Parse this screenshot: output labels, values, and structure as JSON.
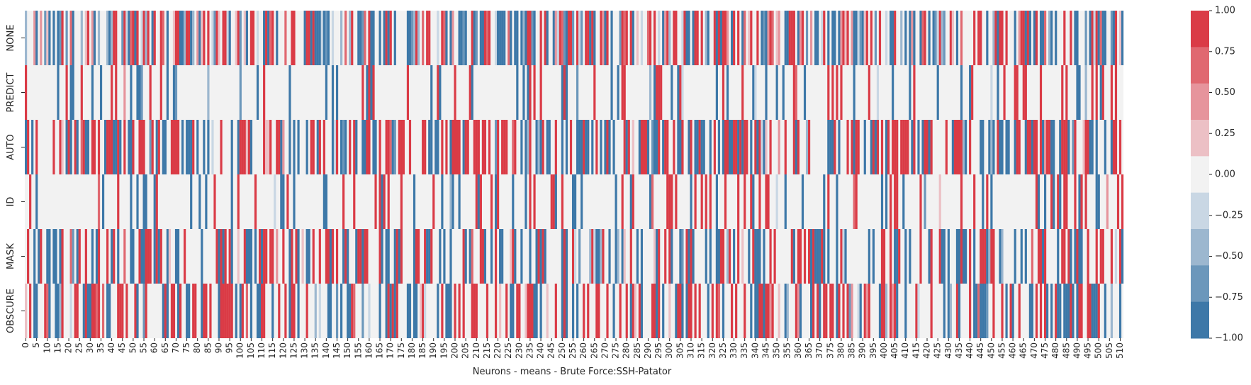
{
  "chart_data": {
    "type": "heatmap",
    "title": "",
    "xlabel": "Neurons - means - Brute Force:SSH-Patator",
    "ylabel": "",
    "rows": [
      "NONE",
      "PREDICT",
      "AUTO",
      "ID",
      "MASK",
      "OBSCURE"
    ],
    "n_columns": 512,
    "x_tick_labels": [
      "0",
      "5",
      "10",
      "15",
      "20",
      "25",
      "30",
      "35",
      "40",
      "45",
      "50",
      "55",
      "60",
      "65",
      "70",
      "75",
      "80",
      "85",
      "90",
      "95",
      "100",
      "105",
      "110",
      "115",
      "120",
      "125",
      "130",
      "135",
      "140",
      "145",
      "150",
      "155",
      "160",
      "165",
      "170",
      "175",
      "180",
      "185",
      "190",
      "195",
      "200",
      "205",
      "210",
      "215",
      "220",
      "225",
      "230",
      "235",
      "240",
      "245",
      "250",
      "255",
      "260",
      "265",
      "270",
      "275",
      "280",
      "285",
      "290",
      "295",
      "300",
      "305",
      "310",
      "315",
      "320",
      "325",
      "330",
      "335",
      "340",
      "345",
      "350",
      "355",
      "360",
      "365",
      "370",
      "375",
      "380",
      "385",
      "390",
      "395",
      "400",
      "405",
      "410",
      "415",
      "420",
      "425",
      "430",
      "435",
      "440",
      "445",
      "450",
      "455",
      "460",
      "465",
      "470",
      "475",
      "480",
      "485",
      "490",
      "495",
      "500",
      "505",
      "510"
    ],
    "x_tick_step": 5,
    "value_range": [
      -1.0,
      1.0
    ],
    "colorbar": {
      "levels": 9,
      "tick_labels": [
        "1.00",
        "0.75",
        "0.50",
        "0.25",
        "0.00",
        "−0.25",
        "−0.50",
        "−0.75",
        "−1.00"
      ],
      "colors": [
        "#3d78a8",
        "#6b97bb",
        "#9cb7cf",
        "#c9d7e4",
        "#f2f2f2",
        "#ecc0c5",
        "#e6949c",
        "#e06870",
        "#da3b46"
      ]
    },
    "colors": {
      "negative": "#3d78a8",
      "neutral": "#f2f2f2",
      "positive": "#da3b46"
    },
    "grid": false,
    "legend": "colorbar-right"
  }
}
